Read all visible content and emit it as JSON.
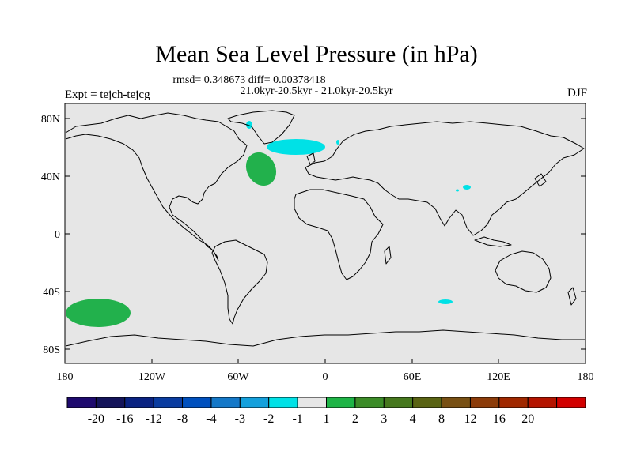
{
  "title": "Mean Sea Level Pressure (in hPa)",
  "stats_line": "rmsd= 0.348673 diff= 0.00378418",
  "period_line": "21.0kyr-20.5kyr - 21.0kyr-20.5kyr",
  "experiment_label": "Expt = tejch-tejcg",
  "season_label": "DJF",
  "map": {
    "lon_range": [
      -180,
      180
    ],
    "lat_range": [
      -90,
      90
    ],
    "background_color": "#e6e6e6",
    "y_ticks": [
      "80N",
      "40N",
      "0",
      "40S",
      "80S"
    ],
    "x_ticks": [
      "180",
      "120W",
      "60W",
      "0",
      "60E",
      "120E",
      "180"
    ]
  },
  "colorbar": {
    "colors": [
      "#1e0a6e",
      "#14145a",
      "#0a2382",
      "#0a3ca0",
      "#0050be",
      "#1478c8",
      "#14a0dc",
      "#00e1e6",
      "#e6e6e6",
      "#1eb446",
      "#3c8c28",
      "#46781e",
      "#5a6414",
      "#785014",
      "#8c3c0a",
      "#a02800",
      "#b41400",
      "#d20000"
    ],
    "labels": [
      "-20",
      "-16",
      "-12",
      "-8",
      "-4",
      "-3",
      "-2",
      "-1",
      "1",
      "2",
      "3",
      "4",
      "8",
      "12",
      "16",
      "20"
    ]
  },
  "anomaly_colors": {
    "positive": "#22b14c",
    "negative": "#00e1e6"
  }
}
